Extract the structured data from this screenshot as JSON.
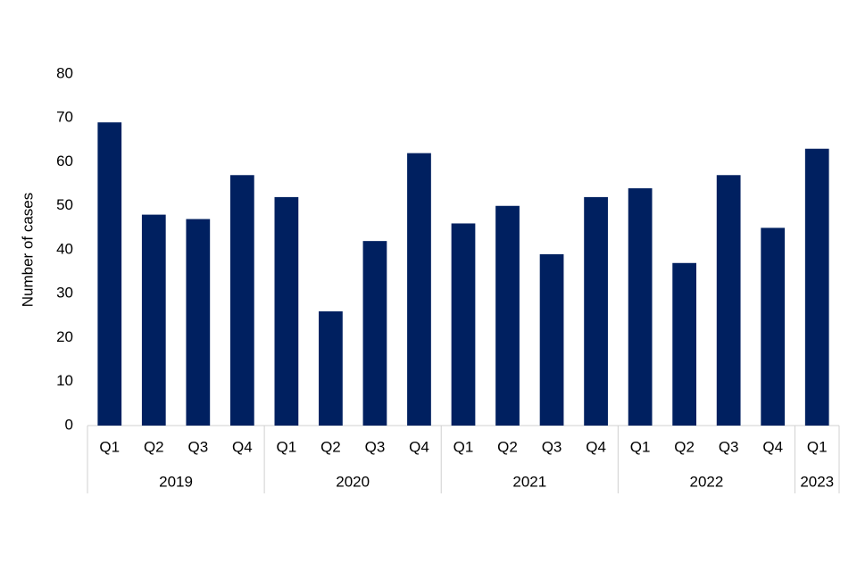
{
  "chart_data": {
    "type": "bar",
    "y_label": "Number of cases",
    "color": "#002060",
    "groups": [
      {
        "name": "2019",
        "categories": [
          "Q1",
          "Q2",
          "Q3",
          "Q4"
        ],
        "values": [
          69,
          48,
          47,
          57
        ]
      },
      {
        "name": "2020",
        "categories": [
          "Q1",
          "Q2",
          "Q3",
          "Q4"
        ],
        "values": [
          52,
          26,
          42,
          62
        ]
      },
      {
        "name": "2021",
        "categories": [
          "Q1",
          "Q2",
          "Q3",
          "Q4"
        ],
        "values": [
          46,
          50,
          39,
          52
        ]
      },
      {
        "name": "2022",
        "categories": [
          "Q1",
          "Q2",
          "Q3",
          "Q4"
        ],
        "values": [
          54,
          37,
          57,
          45
        ]
      },
      {
        "name": "2023",
        "categories": [
          "Q1"
        ],
        "values": [
          63
        ]
      }
    ],
    "ylim": [
      0,
      80
    ],
    "yticks": [
      0,
      10,
      20,
      30,
      40,
      50,
      60,
      70,
      80
    ],
    "grid": false
  }
}
